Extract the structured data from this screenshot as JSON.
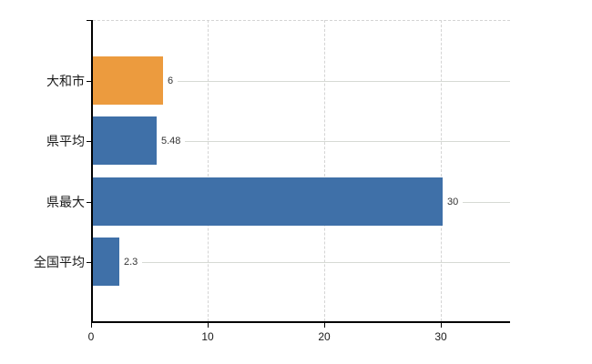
{
  "chart_data": {
    "type": "bar",
    "orientation": "horizontal",
    "title": "",
    "xlabel": "",
    "ylabel": "",
    "legend": "none",
    "categories": [
      "大和市",
      "県平均",
      "県最大",
      "全国平均"
    ],
    "values": [
      6,
      5.48,
      30,
      2.3
    ],
    "value_labels": [
      "6",
      "5.48",
      "30",
      "2.3"
    ],
    "bar_colors": [
      "#EC9B3E",
      "#3F70A8",
      "#3F70A8",
      "#3F70A8"
    ],
    "x_tick_labels": [
      "0",
      "10",
      "20",
      "30"
    ],
    "x_tick_values": [
      0,
      10,
      20,
      30
    ],
    "xlim": [
      0,
      35.94
    ],
    "gridlines_at": [
      10,
      20,
      30
    ],
    "grid_style": "dashed",
    "top_border_dashed": true,
    "colors": {
      "highlight": "#EC9B3E",
      "default_bar": "#3F70A8",
      "axis": "#000000",
      "gridline": "#D4D4D4",
      "leader_line": "#D6DAD4",
      "category_text": "#1A1A1A",
      "value_text": "#333333",
      "background": "#FFFFFF"
    }
  }
}
